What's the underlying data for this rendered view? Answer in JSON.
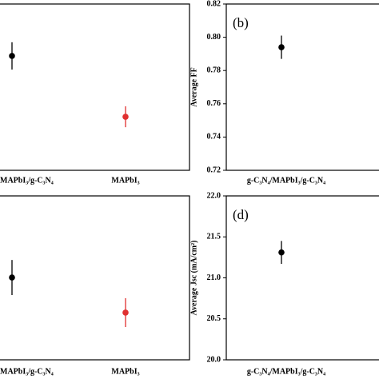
{
  "chart_data": [
    {
      "type": "errorbar",
      "categories": [
        "MAPbI₃/g-C₃N₄",
        "MAPbI₃"
      ],
      "values": [
        68.8,
        32.2
      ],
      "errors": [
        8.2,
        6.3
      ],
      "colors": [
        "#000000",
        "#e03030"
      ],
      "ylim": [
        0,
        100
      ]
    },
    {
      "type": "errorbar",
      "label": "(b)",
      "ylabel": "Average FF",
      "categories": [
        "g-C₃N₄/MAPbI₃/g-C₃N₄"
      ],
      "values": [
        0.794
      ],
      "errors": [
        0.007
      ],
      "colors": [
        "#000000"
      ],
      "ylim": [
        0.72,
        0.82
      ],
      "yticks": [
        {
          "value": 0.72,
          "label": "0.72"
        },
        {
          "value": 0.74,
          "label": "0.74"
        },
        {
          "value": 0.76,
          "label": "0.76"
        },
        {
          "value": 0.78,
          "label": "0.78"
        },
        {
          "value": 0.8,
          "label": "0.80"
        },
        {
          "value": 0.82,
          "label": "0.82"
        }
      ]
    },
    {
      "type": "errorbar",
      "categories": [
        "MAPbI₃/g-C₃N₄",
        "MAPbI₃"
      ],
      "values": [
        50.2,
        28.8
      ],
      "errors": [
        10.7,
        8.8
      ],
      "colors": [
        "#000000",
        "#e03030"
      ],
      "ylim": [
        0,
        100
      ]
    },
    {
      "type": "errorbar",
      "label": "(d)",
      "ylabel": "Average Jsc (mA/cm²)",
      "categories": [
        "g-C₃N₄/MAPbI₃/g-C₃N₄"
      ],
      "values": [
        21.31
      ],
      "errors": [
        0.14
      ],
      "colors": [
        "#000000"
      ],
      "ylim": [
        20,
        22
      ],
      "yticks": [
        {
          "value": 20,
          "label": "20.0"
        },
        {
          "value": 20.5,
          "label": "20.5"
        },
        {
          "value": 21,
          "label": "21.0"
        },
        {
          "value": 21.5,
          "label": "21.5"
        },
        {
          "value": 22,
          "label": "22.0"
        }
      ]
    }
  ]
}
